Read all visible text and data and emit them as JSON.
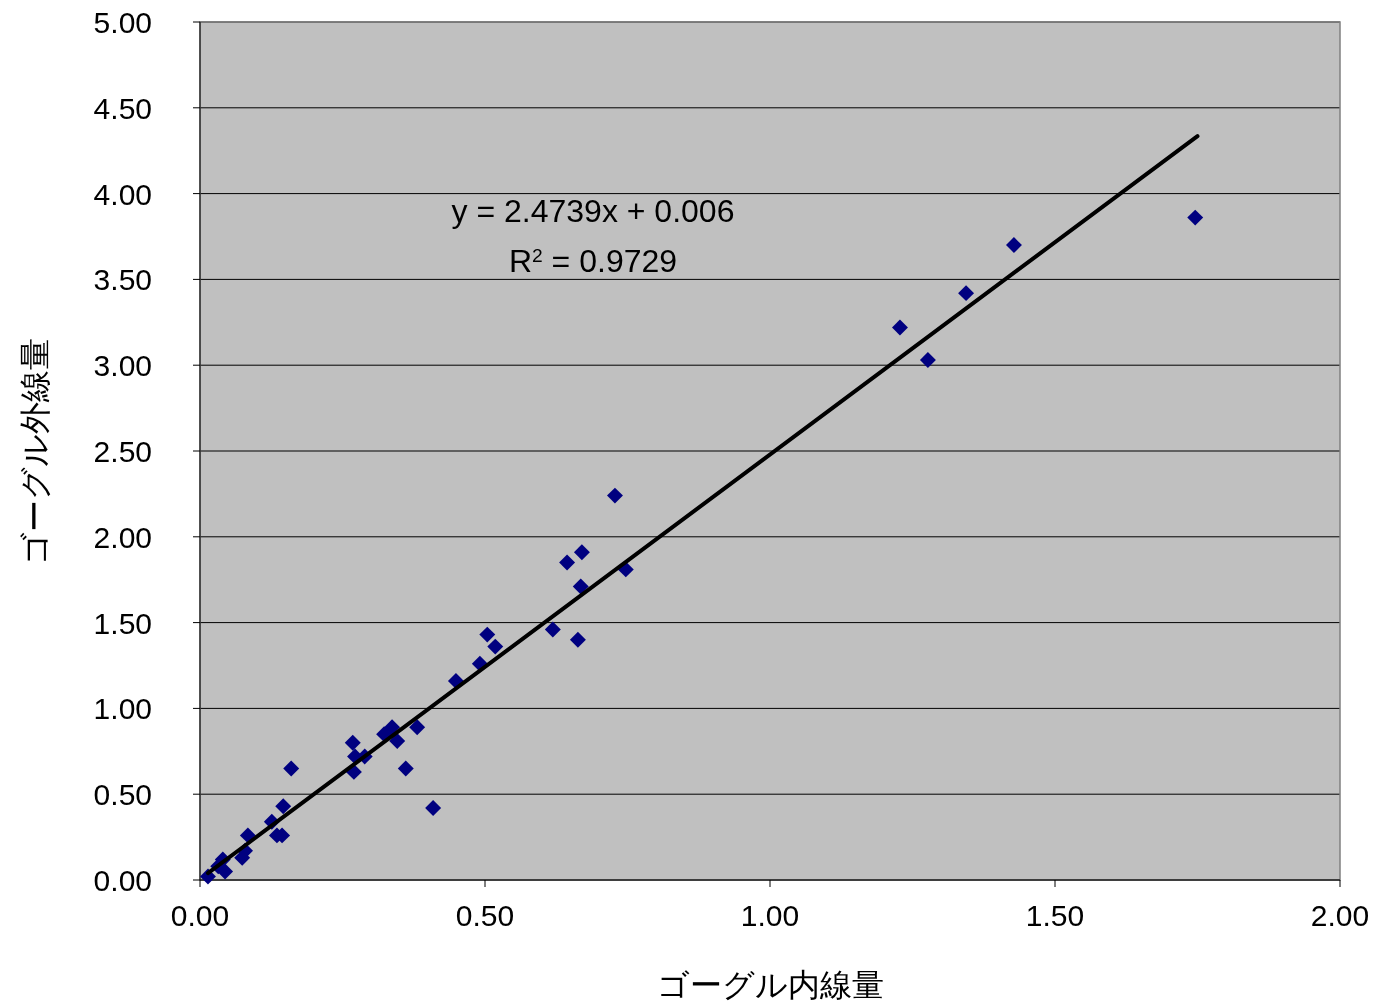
{
  "chart_data": {
    "type": "scatter",
    "xlabel": "ゴーグル内線量",
    "ylabel": "ゴーグル外線量",
    "annotations": [
      "y = 2.4739x + 0.006",
      "R$^{2}$ = 0.9729"
    ],
    "xlim": [
      0,
      2
    ],
    "ylim": [
      0,
      5
    ],
    "xticks": [
      {
        "value": 0,
        "label": "0.00"
      },
      {
        "value": 0.5,
        "label": "0.50"
      },
      {
        "value": 1,
        "label": "1.00"
      },
      {
        "value": 1.5,
        "label": "1.50"
      },
      {
        "value": 2,
        "label": "2.00"
      }
    ],
    "yticks": [
      {
        "value": 0,
        "label": "0.00"
      },
      {
        "value": 0.5,
        "label": "0.50"
      },
      {
        "value": 1,
        "label": "1.00"
      },
      {
        "value": 1.5,
        "label": "1.50"
      },
      {
        "value": 2,
        "label": "2.00"
      },
      {
        "value": 2.5,
        "label": "2.50"
      },
      {
        "value": 3,
        "label": "3.00"
      },
      {
        "value": 3.5,
        "label": "3.50"
      },
      {
        "value": 4,
        "label": "4.00"
      },
      {
        "value": 4.5,
        "label": "4.50"
      },
      {
        "value": 5,
        "label": "5.00"
      }
    ],
    "grid": "y",
    "marker": "diamond",
    "series": [
      {
        "color": "#000080",
        "x": [
          1.746,
          1.428,
          1.344,
          1.228,
          1.277,
          0.728,
          0.67,
          0.644,
          0.747,
          0.668,
          0.619,
          0.663,
          0.504,
          0.518,
          0.491,
          0.449,
          0.381,
          0.337,
          0.323,
          0.346,
          0.268,
          0.272,
          0.289,
          0.27,
          0.361,
          0.16,
          0.409,
          0.146,
          0.126,
          0.135,
          0.144,
          0.084,
          0.079,
          0.074,
          0.04,
          0.032,
          0.044,
          0.014
        ],
        "values": [
          3.86,
          3.7,
          3.42,
          3.22,
          3.03,
          2.24,
          1.91,
          1.85,
          1.81,
          1.71,
          1.46,
          1.4,
          1.43,
          1.36,
          1.26,
          1.16,
          0.89,
          0.89,
          0.85,
          0.81,
          0.8,
          0.72,
          0.72,
          0.63,
          0.65,
          0.65,
          0.42,
          0.43,
          0.34,
          0.26,
          0.26,
          0.26,
          0.17,
          0.13,
          0.12,
          0.08,
          0.05,
          0.02
        ]
      },
      {
        "type": "line",
        "color": "#000000",
        "x": [
          0.014,
          1.75
        ],
        "values": [
          0.04,
          4.335
        ],
        "marker": "none"
      }
    ]
  }
}
